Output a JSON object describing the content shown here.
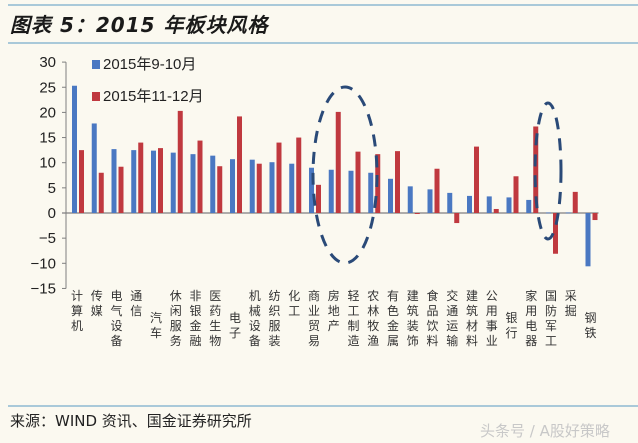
{
  "header": {
    "title": "图表 5：2015 年板块风格"
  },
  "footer": {
    "source": "来源：WIND 资讯、国金证券研究所",
    "watermark": "头条号 / A股好策略"
  },
  "colors": {
    "series1": "#4a78c2",
    "series2": "#c0393f",
    "axis": "#7f7f7f",
    "ellipse": "#2a4a78"
  },
  "chart_data": {
    "type": "bar",
    "title": "2015 年板块风格",
    "xlabel": "",
    "ylabel": "",
    "ylim": [
      -15,
      30
    ],
    "yticks": [
      30,
      25,
      20,
      15,
      10,
      5,
      0,
      -5,
      -10,
      -15
    ],
    "grid": false,
    "legend_position": "top-left",
    "categories": [
      "计算机",
      "传媒",
      "电气设备",
      "通信",
      "汽车",
      "休闲服务",
      "非银金融",
      "医药生物",
      "电子",
      "机械设备",
      "纺织服装",
      "化工",
      "商业贸易",
      "房地产",
      "轻工制造",
      "农林牧渔",
      "有色金属",
      "建筑装饰",
      "食品饮料",
      "交通运输",
      "建筑材料",
      "公用事业",
      "银行",
      "家用电器",
      "国防军工",
      "采掘",
      "钢铁"
    ],
    "series": [
      {
        "name": "2015年9-10月",
        "values": [
          25.3,
          17.8,
          12.7,
          12.5,
          12.4,
          12.0,
          11.7,
          11.4,
          10.7,
          10.6,
          10.1,
          9.8,
          9.0,
          8.6,
          8.4,
          8.0,
          6.8,
          5.3,
          4.7,
          4.0,
          3.4,
          3.3,
          3.1,
          2.6,
          0.1,
          0.1,
          -10.6
        ]
      },
      {
        "name": "2015年11-12月",
        "values": [
          12.5,
          8.0,
          9.2,
          14.0,
          12.9,
          20.3,
          14.4,
          9.3,
          19.2,
          9.8,
          14.0,
          15.0,
          5.6,
          20.1,
          12.2,
          11.7,
          12.3,
          -0.2,
          8.8,
          -2.0,
          13.2,
          0.8,
          7.3,
          17.2,
          -8.1,
          4.2,
          -1.4
        ]
      }
    ],
    "annotations": [
      {
        "type": "dashed-ellipse",
        "around": [
          "商业贸易",
          "房地产",
          "轻工制造"
        ]
      },
      {
        "type": "dashed-ellipse",
        "around": [
          "家用电器"
        ]
      }
    ]
  }
}
